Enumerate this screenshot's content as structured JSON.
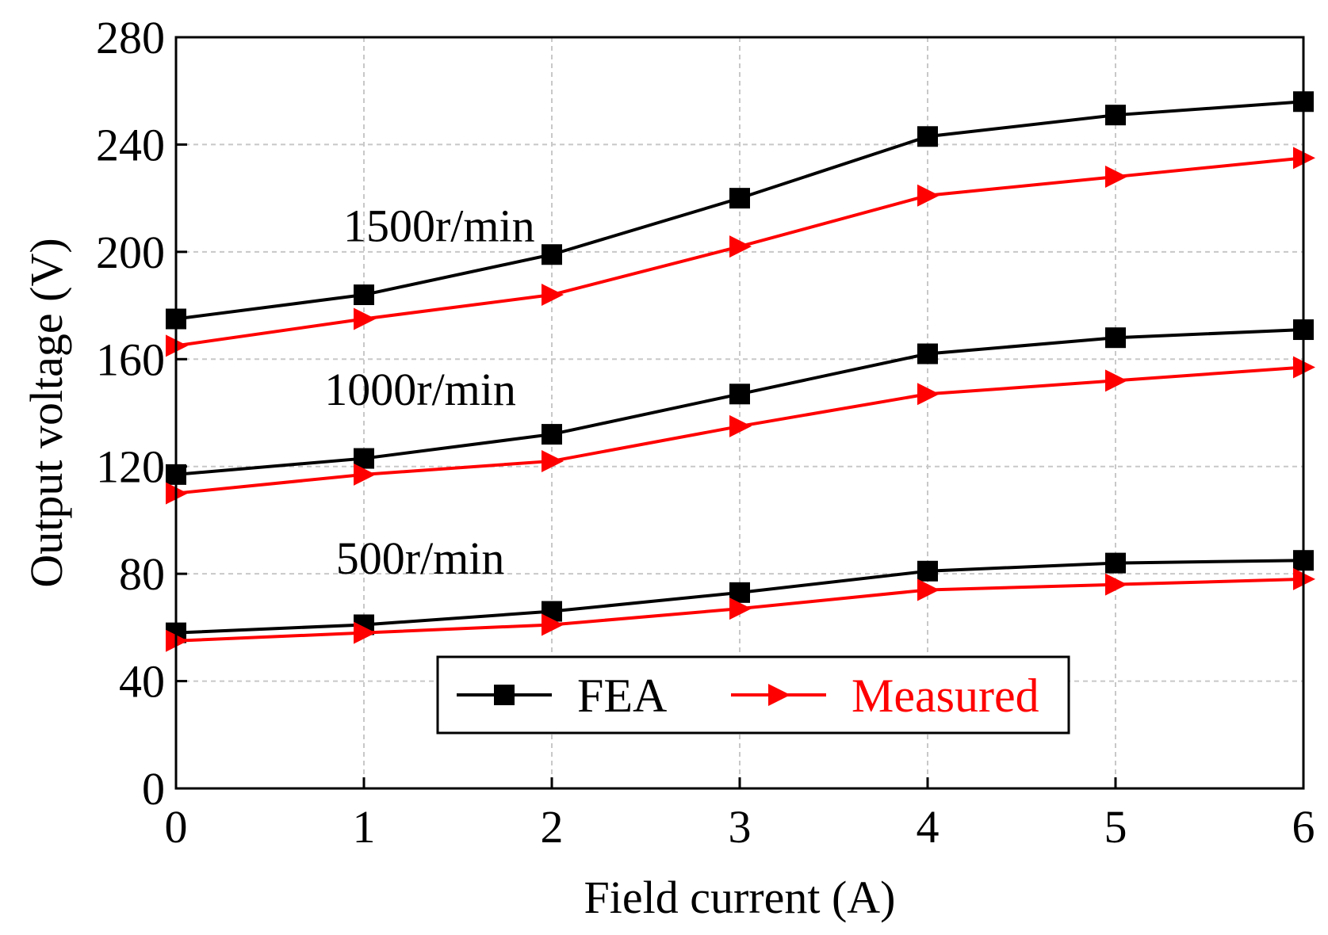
{
  "chart_data": {
    "type": "line",
    "xlabel": "Field current (A)",
    "ylabel": "Output voltage (V)",
    "xlim": [
      0,
      6
    ],
    "ylim": [
      0,
      280
    ],
    "xticks": [
      "0",
      "1",
      "2",
      "3",
      "4",
      "5",
      "6"
    ],
    "yticks": [
      "0",
      "40",
      "80",
      "120",
      "160",
      "200",
      "240",
      "280"
    ],
    "grid": true,
    "legend": {
      "placement": "bottom-center",
      "entries": [
        {
          "name": "FEA",
          "color": "#000000",
          "marker": "square"
        },
        {
          "name": "Measured",
          "color": "#ff0000",
          "marker": "triangle-right"
        }
      ]
    },
    "annotations": [
      {
        "text": "1500r/min",
        "x": 1.4,
        "y": 204
      },
      {
        "text": "1000r/min",
        "x": 1.3,
        "y": 143
      },
      {
        "text": "500r/min",
        "x": 1.3,
        "y": 80
      }
    ],
    "x": [
      0,
      1,
      2,
      3,
      4,
      5,
      6
    ],
    "series": [
      {
        "group": "1500r/min",
        "legend": "FEA",
        "values": [
          175,
          184,
          199,
          220,
          243,
          251,
          256
        ]
      },
      {
        "group": "1500r/min",
        "legend": "Measured",
        "values": [
          165,
          175,
          184,
          202,
          221,
          228,
          235
        ]
      },
      {
        "group": "1000r/min",
        "legend": "FEA",
        "values": [
          117,
          123,
          132,
          147,
          162,
          168,
          171
        ]
      },
      {
        "group": "1000r/min",
        "legend": "Measured",
        "values": [
          110,
          117,
          122,
          135,
          147,
          152,
          157
        ]
      },
      {
        "group": "500r/min",
        "legend": "FEA",
        "values": [
          58,
          61,
          66,
          73,
          81,
          84,
          85
        ]
      },
      {
        "group": "500r/min",
        "legend": "Measured",
        "values": [
          55,
          58,
          61,
          67,
          74,
          76,
          78
        ]
      }
    ]
  }
}
